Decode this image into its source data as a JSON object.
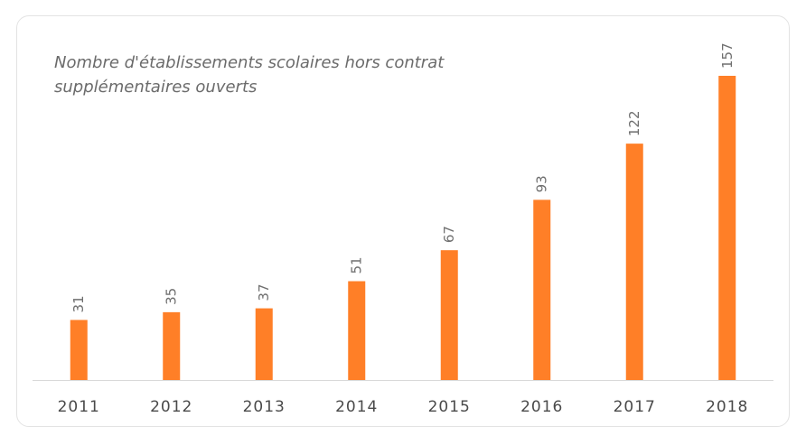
{
  "chart_data": {
    "type": "bar",
    "title": "Nombre d'établissements scolaires hors contrat supplémentaires ouverts",
    "categories": [
      "2011",
      "2012",
      "2013",
      "2014",
      "2015",
      "2016",
      "2017",
      "2018"
    ],
    "values": [
      31,
      35,
      37,
      51,
      67,
      93,
      122,
      157
    ],
    "data_labels": [
      "31",
      "35",
      "37",
      "51",
      "67",
      "93",
      "122",
      "157"
    ],
    "xlabel": "",
    "ylabel": "",
    "ylim": [
      0,
      157
    ],
    "grid": false,
    "legend": "none",
    "bar_color": "#FF7F27",
    "axis_color": "#d9d9d9"
  }
}
